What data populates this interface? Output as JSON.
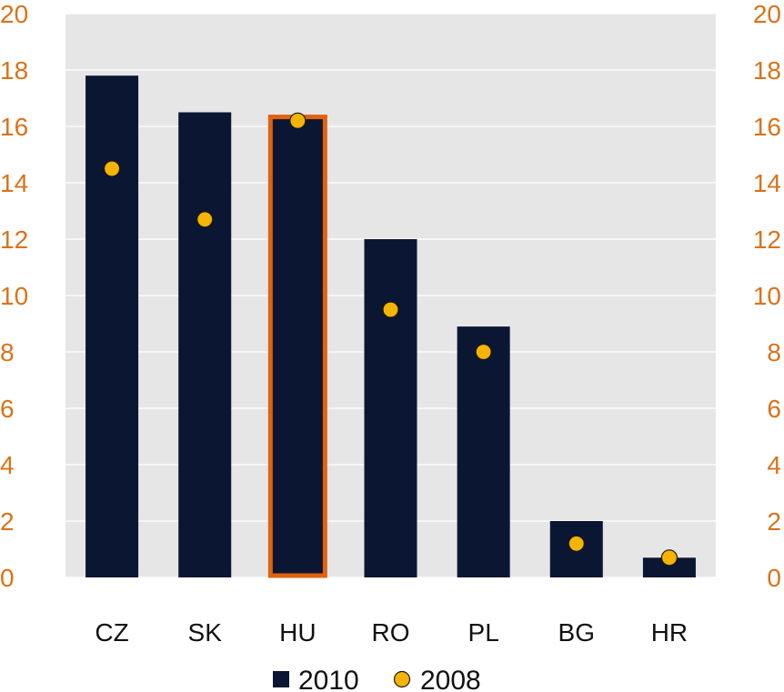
{
  "chart_data": {
    "type": "bar",
    "categories": [
      "CZ",
      "SK",
      "HU",
      "RO",
      "PL",
      "BG",
      "HR"
    ],
    "series": [
      {
        "name": "2010",
        "kind": "bar",
        "values": [
          17.8,
          16.5,
          16.4,
          12.0,
          8.9,
          2.0,
          0.7
        ],
        "color": "#0b1633"
      },
      {
        "name": "2008",
        "kind": "point",
        "values": [
          14.5,
          12.7,
          16.2,
          9.5,
          8.0,
          1.2,
          0.7
        ],
        "color": "#f5b400"
      }
    ],
    "highlight_category": "HU",
    "highlight_color": "#e0620e",
    "ylim": [
      0,
      20
    ],
    "yticks": [
      0,
      2,
      4,
      6,
      8,
      10,
      12,
      14,
      16,
      18,
      20
    ],
    "ytick_labels": [
      "0",
      "2",
      "4",
      "6",
      "8",
      "10",
      "12",
      "14",
      "16",
      "18",
      "20"
    ],
    "axis_label_color": "#d9731a",
    "plot_background": "#e6e6e6",
    "grid": true,
    "legend_position": "bottom-center",
    "title": "",
    "xlabel": "",
    "ylabel": ""
  }
}
